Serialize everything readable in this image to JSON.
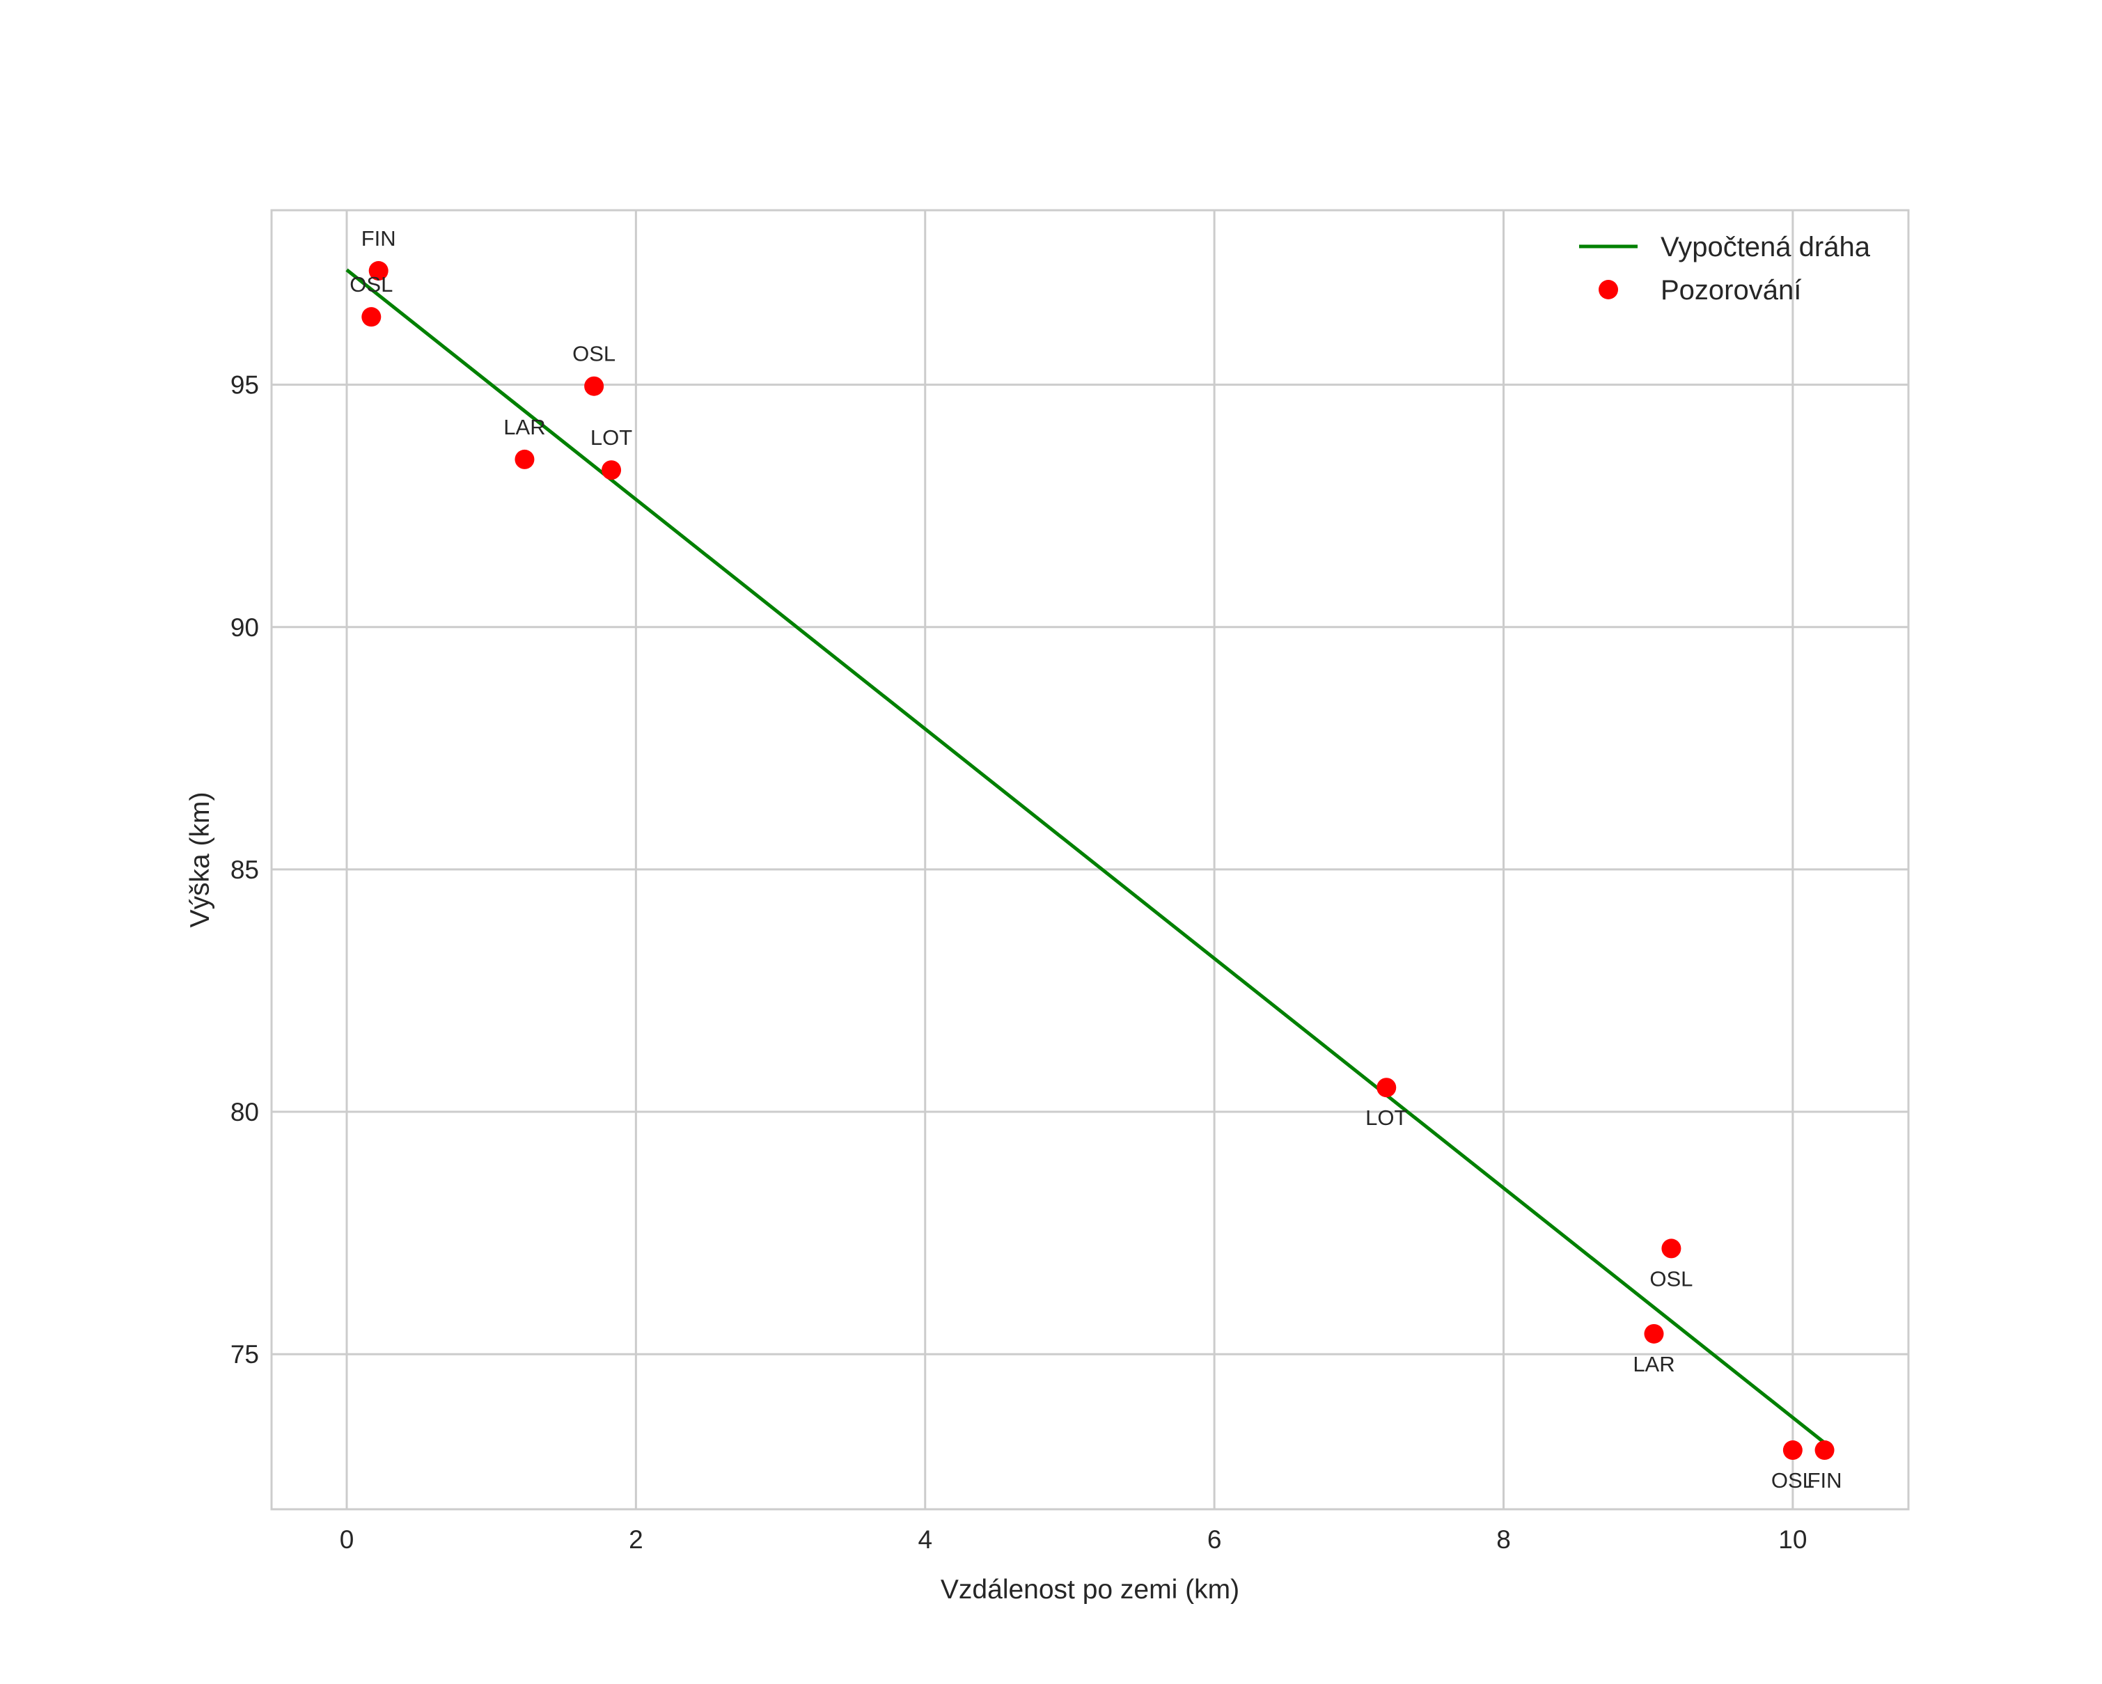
{
  "chart_data": {
    "type": "scatter",
    "title": "",
    "xlabel": "Vzdálenost po zemi (km)",
    "ylabel": "Výška (km)",
    "xlim": [
      -0.52,
      10.8
    ],
    "ylim": [
      71.8,
      98.6
    ],
    "xticks": [
      0,
      2,
      4,
      6,
      8,
      10
    ],
    "yticks": [
      75,
      80,
      85,
      90,
      95
    ],
    "grid": true,
    "legend_position": "top-right",
    "legend": [
      "Vypočtená dráha",
      "Pozorování"
    ],
    "series": [
      {
        "name": "Vypočtená dráha",
        "kind": "line",
        "color": "#008000",
        "points": [
          [
            0,
            97.37
          ],
          [
            10.25,
            73.1
          ]
        ]
      },
      {
        "name": "Pozorování",
        "kind": "scatter",
        "color": "#ff0000",
        "points": [
          {
            "x": 0.22,
            "y": 97.35,
            "label": "FIN",
            "pos": "above"
          },
          {
            "x": 0.17,
            "y": 96.4,
            "label": "OSL",
            "pos": "above"
          },
          {
            "x": 1.71,
            "y": 94.97,
            "label": "OSL",
            "pos": "above"
          },
          {
            "x": 1.23,
            "y": 93.46,
            "label": "LAR",
            "pos": "above"
          },
          {
            "x": 1.83,
            "y": 93.24,
            "label": "LOT",
            "pos": "above"
          },
          {
            "x": 7.19,
            "y": 80.5,
            "label": "LOT",
            "pos": "below"
          },
          {
            "x": 9.16,
            "y": 77.18,
            "label": "OSL",
            "pos": "below"
          },
          {
            "x": 9.04,
            "y": 75.42,
            "label": "LAR",
            "pos": "below"
          },
          {
            "x": 10.0,
            "y": 73.02,
            "label": "OSL",
            "pos": "below"
          },
          {
            "x": 10.22,
            "y": 73.02,
            "label": "FIN",
            "pos": "below"
          }
        ]
      }
    ]
  }
}
